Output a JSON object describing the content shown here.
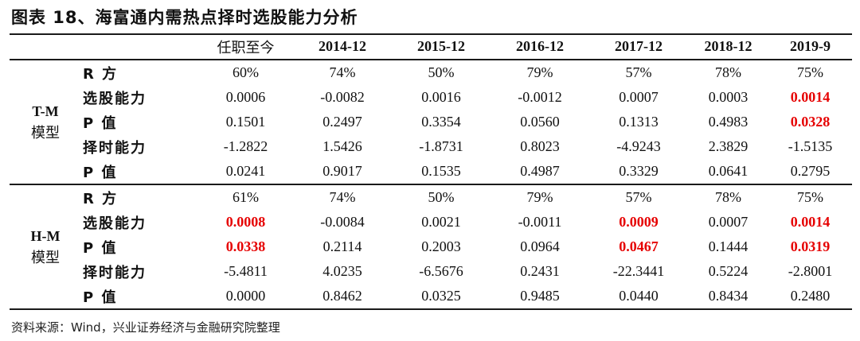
{
  "title": "图表 18、海富通内需热点择时选股能力分析",
  "columns": [
    "任职至今",
    "2014-12",
    "2015-12",
    "2016-12",
    "2017-12",
    "2018-12",
    "2019-9"
  ],
  "sections": [
    {
      "model_line1": "T-M",
      "model_line2": "模型",
      "rows": [
        {
          "metric": "R 方",
          "values": [
            "60%",
            "74%",
            "50%",
            "79%",
            "57%",
            "78%",
            "75%"
          ],
          "highlight": [
            false,
            false,
            false,
            false,
            false,
            false,
            false
          ]
        },
        {
          "metric": "选股能力",
          "values": [
            "0.0006",
            "-0.0082",
            "0.0016",
            "-0.0012",
            "0.0007",
            "0.0003",
            "0.0014"
          ],
          "highlight": [
            false,
            false,
            false,
            false,
            false,
            false,
            true
          ]
        },
        {
          "metric": "P 值",
          "values": [
            "0.1501",
            "0.2497",
            "0.3354",
            "0.0560",
            "0.1313",
            "0.4983",
            "0.0328"
          ],
          "highlight": [
            false,
            false,
            false,
            false,
            false,
            false,
            true
          ]
        },
        {
          "metric": "择时能力",
          "values": [
            "-1.2822",
            "1.5426",
            "-1.8731",
            "0.8023",
            "-4.9243",
            "2.3829",
            "-1.5135"
          ],
          "highlight": [
            false,
            false,
            false,
            false,
            false,
            false,
            false
          ]
        },
        {
          "metric": "P 值",
          "values": [
            "0.0241",
            "0.9017",
            "0.1535",
            "0.4987",
            "0.3329",
            "0.0641",
            "0.2795"
          ],
          "highlight": [
            false,
            false,
            false,
            false,
            false,
            false,
            false
          ]
        }
      ]
    },
    {
      "model_line1": "H-M",
      "model_line2": "模型",
      "rows": [
        {
          "metric": "R 方",
          "values": [
            "61%",
            "74%",
            "50%",
            "79%",
            "57%",
            "78%",
            "75%"
          ],
          "highlight": [
            false,
            false,
            false,
            false,
            false,
            false,
            false
          ]
        },
        {
          "metric": "选股能力",
          "values": [
            "0.0008",
            "-0.0084",
            "0.0021",
            "-0.0011",
            "0.0009",
            "0.0007",
            "0.0014"
          ],
          "highlight": [
            true,
            false,
            false,
            false,
            true,
            false,
            true
          ]
        },
        {
          "metric": "P 值",
          "values": [
            "0.0338",
            "0.2114",
            "0.2003",
            "0.0964",
            "0.0467",
            "0.1444",
            "0.0319"
          ],
          "highlight": [
            true,
            false,
            false,
            false,
            true,
            false,
            true
          ]
        },
        {
          "metric": "择时能力",
          "values": [
            "-5.4811",
            "4.0235",
            "-6.5676",
            "0.2431",
            "-22.3441",
            "0.5224",
            "-2.8001"
          ],
          "highlight": [
            false,
            false,
            false,
            false,
            false,
            false,
            false
          ]
        },
        {
          "metric": "P 值",
          "values": [
            "0.0000",
            "0.8462",
            "0.0325",
            "0.9485",
            "0.0440",
            "0.8434",
            "0.2480"
          ],
          "highlight": [
            false,
            false,
            false,
            false,
            false,
            false,
            false
          ]
        }
      ]
    }
  ],
  "highlight_color": "#e60000",
  "source": "资料来源：Wind，兴业证券经济与金融研究院整理"
}
